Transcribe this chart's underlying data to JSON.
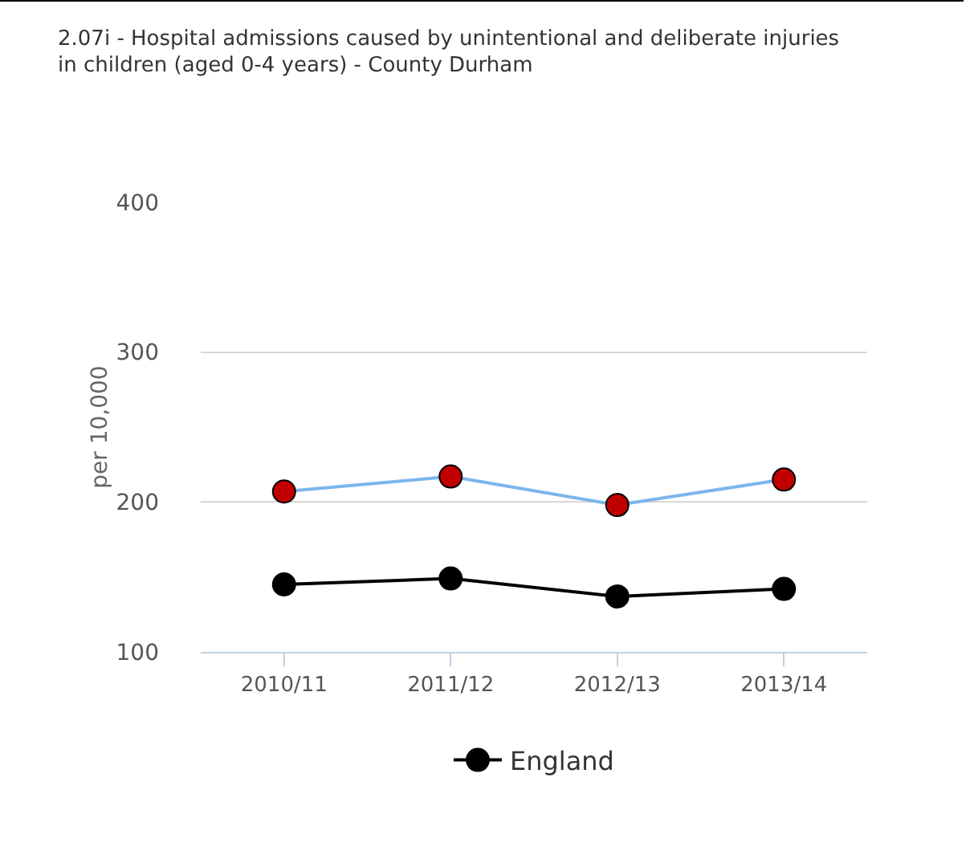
{
  "chart_data": {
    "type": "line",
    "title": "2.07i - Hospital admissions caused by unintentional and deliberate injuries in children (aged 0-4 years) - County Durham",
    "ylabel": "per 10,000",
    "categories": [
      "2010/11",
      "2011/12",
      "2012/13",
      "2013/14"
    ],
    "series": [
      {
        "color": "#7cb5ec",
        "colors": [
          "#c00000",
          "#c00000",
          "#c00000",
          "#c00000"
        ],
        "values": [
          207,
          217,
          198,
          215
        ]
      },
      {
        "name": "England",
        "color": "#000000",
        "values": [
          145,
          149,
          137,
          142
        ]
      }
    ],
    "ylim": [
      100,
      400
    ],
    "yticks": [
      100,
      200,
      300,
      400
    ],
    "grid": "y",
    "legend": "bottom",
    "marker": "circle"
  }
}
